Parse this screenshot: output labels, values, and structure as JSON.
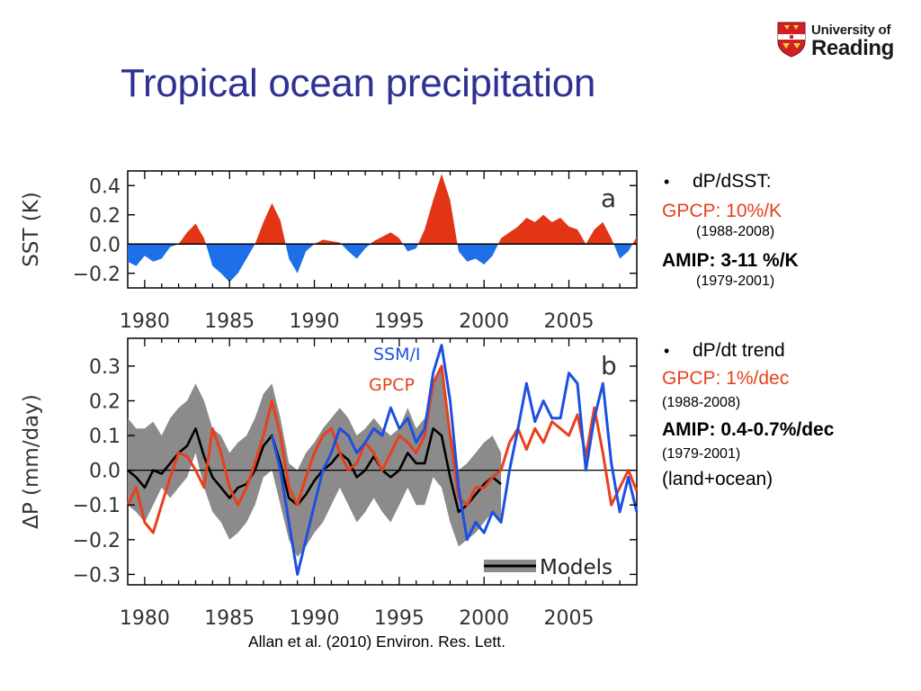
{
  "title": "Tropical ocean precipitation",
  "logo": {
    "line1": "University of",
    "line2": "Reading",
    "icon": "university-crest"
  },
  "citation": "Allan et al. (2010) Environ. Res. Lett.",
  "notes": {
    "bullet1": "dP/dSST:",
    "gpcp1": "GPCP:  10%/K",
    "gpcp1_years": "(1988-2008)",
    "amip1": "AMIP:   3-11 %/K",
    "amip1_years": "(1979-2001)",
    "bullet2": "dP/dt trend",
    "gpcp2": "GPCP: 1%/dec",
    "gpcp2_years": "(1988-2008)",
    "amip2": "AMIP: 0.4-0.7%/dec",
    "amip2_years": "(1979-2001)",
    "extra": "(land+ocean)"
  },
  "colors": {
    "title": "#2e3192",
    "gpcp": "#e8401c",
    "ssmi": "#1d4fe0",
    "sst_pos": "#e23516",
    "sst_neg": "#1f6fe8",
    "models_band": "#8c8a8a"
  },
  "chart_data": [
    {
      "type": "area",
      "panel_label": "a",
      "ylabel": "SST (K)",
      "ylim": [
        -0.3,
        0.5
      ],
      "yticks": [
        "0.4",
        "0.2",
        "0.0",
        "−0.2"
      ],
      "xlim": [
        1979,
        2009
      ],
      "xticks": [
        "1980",
        "1985",
        "1990",
        "1995",
        "2000",
        "2005"
      ],
      "grid": false,
      "x": [
        1979.0,
        1979.5,
        1980.0,
        1980.5,
        1981.0,
        1981.5,
        1982.0,
        1982.5,
        1983.0,
        1983.5,
        1984.0,
        1984.5,
        1985.0,
        1985.5,
        1986.0,
        1986.5,
        1987.0,
        1987.5,
        1988.0,
        1988.5,
        1989.0,
        1989.5,
        1990.0,
        1990.5,
        1991.0,
        1991.5,
        1992.0,
        1992.5,
        1993.0,
        1993.5,
        1994.0,
        1994.5,
        1995.0,
        1995.5,
        1996.0,
        1996.5,
        1997.0,
        1997.5,
        1998.0,
        1998.5,
        1999.0,
        1999.5,
        2000.0,
        2000.5,
        2001.0,
        2001.5,
        2002.0,
        2002.5,
        2003.0,
        2003.5,
        2004.0,
        2004.5,
        2005.0,
        2005.5,
        2006.0,
        2006.5,
        2007.0,
        2007.5,
        2008.0,
        2008.5,
        2009.0
      ],
      "values": [
        -0.12,
        -0.15,
        -0.08,
        -0.12,
        -0.1,
        -0.02,
        0.0,
        0.08,
        0.14,
        0.04,
        -0.15,
        -0.2,
        -0.26,
        -0.2,
        -0.1,
        0.0,
        0.15,
        0.28,
        0.16,
        -0.1,
        -0.2,
        -0.05,
        0.0,
        0.03,
        0.02,
        0.01,
        -0.05,
        -0.1,
        -0.03,
        0.02,
        0.05,
        0.08,
        0.04,
        -0.05,
        -0.03,
        0.1,
        0.3,
        0.48,
        0.3,
        -0.05,
        -0.12,
        -0.1,
        -0.14,
        -0.08,
        0.04,
        0.08,
        0.12,
        0.18,
        0.15,
        0.2,
        0.15,
        0.18,
        0.12,
        0.1,
        0.0,
        0.1,
        0.15,
        0.04,
        -0.1,
        -0.05,
        0.05
      ]
    },
    {
      "type": "line",
      "panel_label": "b",
      "ylabel": "ΔP  (mm/day)",
      "ylim": [
        -0.33,
        0.38
      ],
      "yticks": [
        "0.3",
        "0.2",
        "0.1",
        "0.0",
        "−0.1",
        "−0.2",
        "−0.3"
      ],
      "xlim": [
        1979,
        2009
      ],
      "xticks": [
        "1980",
        "1985",
        "1990",
        "1995",
        "2000",
        "2005"
      ],
      "grid": false,
      "legend": [
        "SSM/I",
        "GPCP",
        "Models"
      ],
      "series": [
        {
          "name": "Models",
          "style": "band",
          "x": [
            1979.0,
            1979.5,
            1980.0,
            1980.5,
            1981.0,
            1981.5,
            1982.0,
            1982.5,
            1983.0,
            1983.5,
            1984.0,
            1984.5,
            1985.0,
            1985.5,
            1986.0,
            1986.5,
            1987.0,
            1987.5,
            1988.0,
            1988.5,
            1989.0,
            1989.5,
            1990.0,
            1990.5,
            1991.0,
            1991.5,
            1992.0,
            1992.5,
            1993.0,
            1993.5,
            1994.0,
            1994.5,
            1995.0,
            1995.5,
            1996.0,
            1996.5,
            1997.0,
            1997.5,
            1998.0,
            1998.5,
            1999.0,
            1999.5,
            2000.0,
            2000.5,
            2001.0
          ],
          "upper": [
            0.15,
            0.12,
            0.12,
            0.14,
            0.1,
            0.15,
            0.18,
            0.2,
            0.25,
            0.2,
            0.12,
            0.1,
            0.05,
            0.08,
            0.1,
            0.15,
            0.22,
            0.25,
            0.15,
            0.02,
            0.0,
            0.05,
            0.08,
            0.12,
            0.15,
            0.18,
            0.15,
            0.1,
            0.12,
            0.15,
            0.12,
            0.1,
            0.12,
            0.18,
            0.12,
            0.15,
            0.25,
            0.3,
            0.12,
            0.0,
            0.02,
            0.05,
            0.08,
            0.1,
            0.05
          ],
          "lower": [
            -0.1,
            -0.12,
            -0.15,
            -0.1,
            -0.05,
            -0.08,
            -0.05,
            -0.02,
            0.05,
            -0.05,
            -0.12,
            -0.15,
            -0.2,
            -0.18,
            -0.15,
            -0.1,
            -0.02,
            0.0,
            -0.1,
            -0.2,
            -0.25,
            -0.22,
            -0.18,
            -0.15,
            -0.1,
            -0.05,
            -0.1,
            -0.15,
            -0.12,
            -0.08,
            -0.12,
            -0.15,
            -0.1,
            -0.05,
            -0.1,
            -0.1,
            -0.02,
            -0.05,
            -0.15,
            -0.22,
            -0.2,
            -0.18,
            -0.15,
            -0.12,
            -0.15
          ]
        },
        {
          "name": "Models",
          "style": "line-mean",
          "x": [
            1979.0,
            1979.5,
            1980.0,
            1980.5,
            1981.0,
            1981.5,
            1982.0,
            1982.5,
            1983.0,
            1983.5,
            1984.0,
            1984.5,
            1985.0,
            1985.5,
            1986.0,
            1986.5,
            1987.0,
            1987.5,
            1988.0,
            1988.5,
            1989.0,
            1989.5,
            1990.0,
            1990.5,
            1991.0,
            1991.5,
            1992.0,
            1992.5,
            1993.0,
            1993.5,
            1994.0,
            1994.5,
            1995.0,
            1995.5,
            1996.0,
            1996.5,
            1997.0,
            1997.5,
            1998.0,
            1998.5,
            1999.0,
            1999.5,
            2000.0,
            2000.5,
            2001.0
          ],
          "values": [
            0.0,
            -0.02,
            -0.05,
            0.0,
            -0.01,
            0.02,
            0.05,
            0.07,
            0.12,
            0.04,
            -0.02,
            -0.05,
            -0.08,
            -0.05,
            -0.04,
            0.0,
            0.07,
            0.1,
            0.02,
            -0.08,
            -0.1,
            -0.07,
            -0.03,
            0.0,
            0.02,
            0.05,
            0.03,
            -0.02,
            0.0,
            0.04,
            0.0,
            -0.02,
            0.0,
            0.05,
            0.02,
            0.02,
            0.12,
            0.1,
            -0.02,
            -0.12,
            -0.1,
            -0.07,
            -0.04,
            -0.02,
            -0.04
          ]
        },
        {
          "name": "GPCP",
          "x": [
            1979.0,
            1979.5,
            1980.0,
            1980.5,
            1981.0,
            1981.5,
            1982.0,
            1982.5,
            1983.0,
            1983.5,
            1984.0,
            1984.5,
            1985.0,
            1985.5,
            1986.0,
            1986.5,
            1987.0,
            1987.5,
            1988.0,
            1988.5,
            1989.0,
            1989.5,
            1990.0,
            1990.5,
            1991.0,
            1991.5,
            1992.0,
            1992.5,
            1993.0,
            1993.5,
            1994.0,
            1994.5,
            1995.0,
            1995.5,
            1996.0,
            1996.5,
            1997.0,
            1997.5,
            1998.0,
            1998.5,
            1999.0,
            1999.5,
            2000.0,
            2000.5,
            2001.0,
            2001.5,
            2002.0,
            2002.5,
            2003.0,
            2003.5,
            2004.0,
            2004.5,
            2005.0,
            2005.5,
            2006.0,
            2006.5,
            2007.0,
            2007.5,
            2008.0,
            2008.5,
            2009.0
          ],
          "values": [
            -0.1,
            -0.05,
            -0.15,
            -0.18,
            -0.1,
            -0.02,
            0.05,
            0.04,
            0.0,
            -0.05,
            0.12,
            0.05,
            -0.05,
            -0.1,
            -0.05,
            0.02,
            0.1,
            0.2,
            0.1,
            -0.05,
            -0.1,
            -0.02,
            0.05,
            0.1,
            0.12,
            0.05,
            0.0,
            0.02,
            0.08,
            0.05,
            0.0,
            0.05,
            0.1,
            0.08,
            0.05,
            0.1,
            0.25,
            0.3,
            0.1,
            -0.08,
            -0.1,
            -0.05,
            -0.05,
            -0.02,
            0.0,
            0.08,
            0.12,
            0.06,
            0.12,
            0.08,
            0.14,
            0.12,
            0.1,
            0.16,
            0.04,
            0.18,
            0.05,
            -0.1,
            -0.05,
            0.0,
            -0.06
          ]
        },
        {
          "name": "SSM/I",
          "x": [
            1987.5,
            1988.0,
            1988.5,
            1989.0,
            1989.5,
            1990.0,
            1990.5,
            1991.0,
            1991.5,
            1992.0,
            1992.5,
            1993.0,
            1993.5,
            1994.0,
            1994.5,
            1995.0,
            1995.5,
            1996.0,
            1996.5,
            1997.0,
            1997.5,
            1998.0,
            1998.5,
            1999.0,
            1999.5,
            2000.0,
            2000.5,
            2001.0,
            2001.5,
            2002.0,
            2002.5,
            2003.0,
            2003.5,
            2004.0,
            2004.5,
            2005.0,
            2005.5,
            2006.0,
            2006.5,
            2007.0,
            2007.5,
            2008.0,
            2008.5,
            2009.0
          ],
          "values": [
            0.1,
            0.0,
            -0.15,
            -0.3,
            -0.2,
            -0.1,
            0.0,
            0.05,
            0.12,
            0.1,
            0.05,
            0.08,
            0.12,
            0.1,
            0.18,
            0.12,
            0.15,
            0.08,
            0.12,
            0.28,
            0.36,
            0.2,
            -0.05,
            -0.2,
            -0.15,
            -0.18,
            -0.12,
            -0.15,
            0.0,
            0.12,
            0.25,
            0.14,
            0.2,
            0.15,
            0.15,
            0.28,
            0.25,
            0.0,
            0.15,
            0.25,
            0.02,
            -0.12,
            -0.02,
            -0.12
          ]
        }
      ]
    }
  ]
}
